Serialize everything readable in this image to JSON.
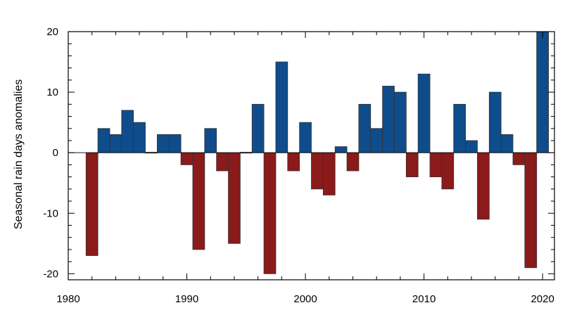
{
  "chart_data": {
    "type": "bar",
    "title": "",
    "xlabel": "",
    "ylabel": "Seasonal rain days anomalies",
    "xlim": [
      1980,
      2021
    ],
    "ylim": [
      -21,
      20
    ],
    "x_ticks": [
      1980,
      1990,
      2000,
      2010,
      2020
    ],
    "x_tick_labels": [
      "1980",
      "1990",
      "2000",
      "2010",
      "2020"
    ],
    "x_minor_step": 2,
    "y_ticks": [
      -20,
      -10,
      0,
      10,
      20
    ],
    "y_tick_labels": [
      "-20",
      "-10",
      "0",
      "10",
      "20"
    ],
    "y_minor_step": 2,
    "grid": false,
    "colors": {
      "positive": "#0f4c8c",
      "negative": "#8b1a1a"
    },
    "x": [
      1982,
      1983,
      1984,
      1985,
      1986,
      1987,
      1988,
      1989,
      1990,
      1991,
      1992,
      1993,
      1994,
      1995,
      1996,
      1997,
      1998,
      1999,
      2000,
      2001,
      2002,
      2003,
      2004,
      2005,
      2006,
      2007,
      2008,
      2009,
      2010,
      2011,
      2012,
      2013,
      2014,
      2015,
      2016,
      2017,
      2018,
      2019,
      2020
    ],
    "values": [
      -17,
      4,
      3,
      7,
      5,
      0,
      3,
      3,
      -2,
      -16,
      4,
      -3,
      -15,
      0,
      8,
      -20,
      15,
      -3,
      5,
      -6,
      -7,
      1,
      -3,
      8,
      4,
      11,
      10,
      -4,
      13,
      -4,
      -6,
      8,
      2,
      -11,
      10,
      3,
      -2,
      -19,
      20
    ]
  }
}
